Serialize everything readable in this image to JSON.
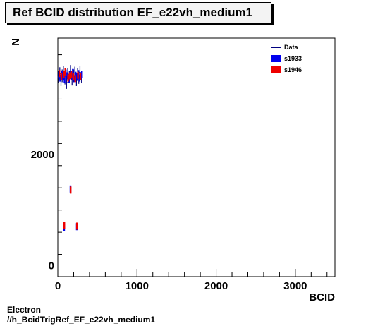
{
  "chart_data": {
    "type": "scatter",
    "title": "Ref BCID distribution EF_e22vh_medium1",
    "xlabel": "BCID",
    "ylabel": "N",
    "xlim": [
      0,
      3500
    ],
    "ylim": [
      -200,
      4100
    ],
    "x_major_ticks": [
      0,
      1000,
      2000,
      3000
    ],
    "x_tick_labels": [
      "0",
      "1000",
      "2000",
      "3000"
    ],
    "y_major_ticks": [
      0,
      2000
    ],
    "y_tick_labels": [
      "0",
      "2000"
    ],
    "legend": {
      "placement": "top-right",
      "entries": [
        {
          "name": "Data",
          "style": "line",
          "color": "#000080"
        },
        {
          "name": "s1933",
          "style": "fill",
          "color": "#0000ee"
        },
        {
          "name": "s1946",
          "style": "fill",
          "color": "#ee0000"
        }
      ]
    },
    "series": [
      {
        "name": "Data",
        "color": "#000080",
        "x": [
          10,
          25,
          40,
          55,
          70,
          90,
          110,
          125,
          145,
          160,
          180,
          200,
          215,
          235,
          250,
          265,
          280,
          300
        ],
        "y": [
          3400,
          3460,
          3350,
          3420,
          3480,
          3380,
          3300,
          3450,
          3400,
          3500,
          3360,
          3420,
          3470,
          3350,
          3440,
          3390,
          3480,
          3400
        ]
      },
      {
        "name": "s1933",
        "color": "#0000ee",
        "x": [
          15,
          30,
          50,
          65,
          85,
          100,
          120,
          140,
          155,
          175,
          190,
          210,
          225,
          245,
          260,
          275,
          290,
          305,
          80,
          160,
          240
        ],
        "y": [
          3430,
          3380,
          3450,
          3400,
          3360,
          3470,
          3420,
          3350,
          3440,
          3410,
          3480,
          3370,
          3430,
          3400,
          3460,
          3380,
          3420,
          3440,
          680,
          1380,
          700
        ]
      },
      {
        "name": "s1946",
        "color": "#ee0000",
        "x": [
          20,
          45,
          75,
          95,
          130,
          150,
          170,
          195,
          220,
          255,
          285,
          82,
          162,
          242
        ],
        "y": [
          3460,
          3400,
          3440,
          3490,
          3380,
          3420,
          3450,
          3400,
          3370,
          3430,
          3410,
          720,
          1360,
          710
        ]
      }
    ]
  },
  "footer": {
    "line1": "Electron",
    "line2": "//h_BcidTrigRef_EF_e22vh_medium1"
  }
}
